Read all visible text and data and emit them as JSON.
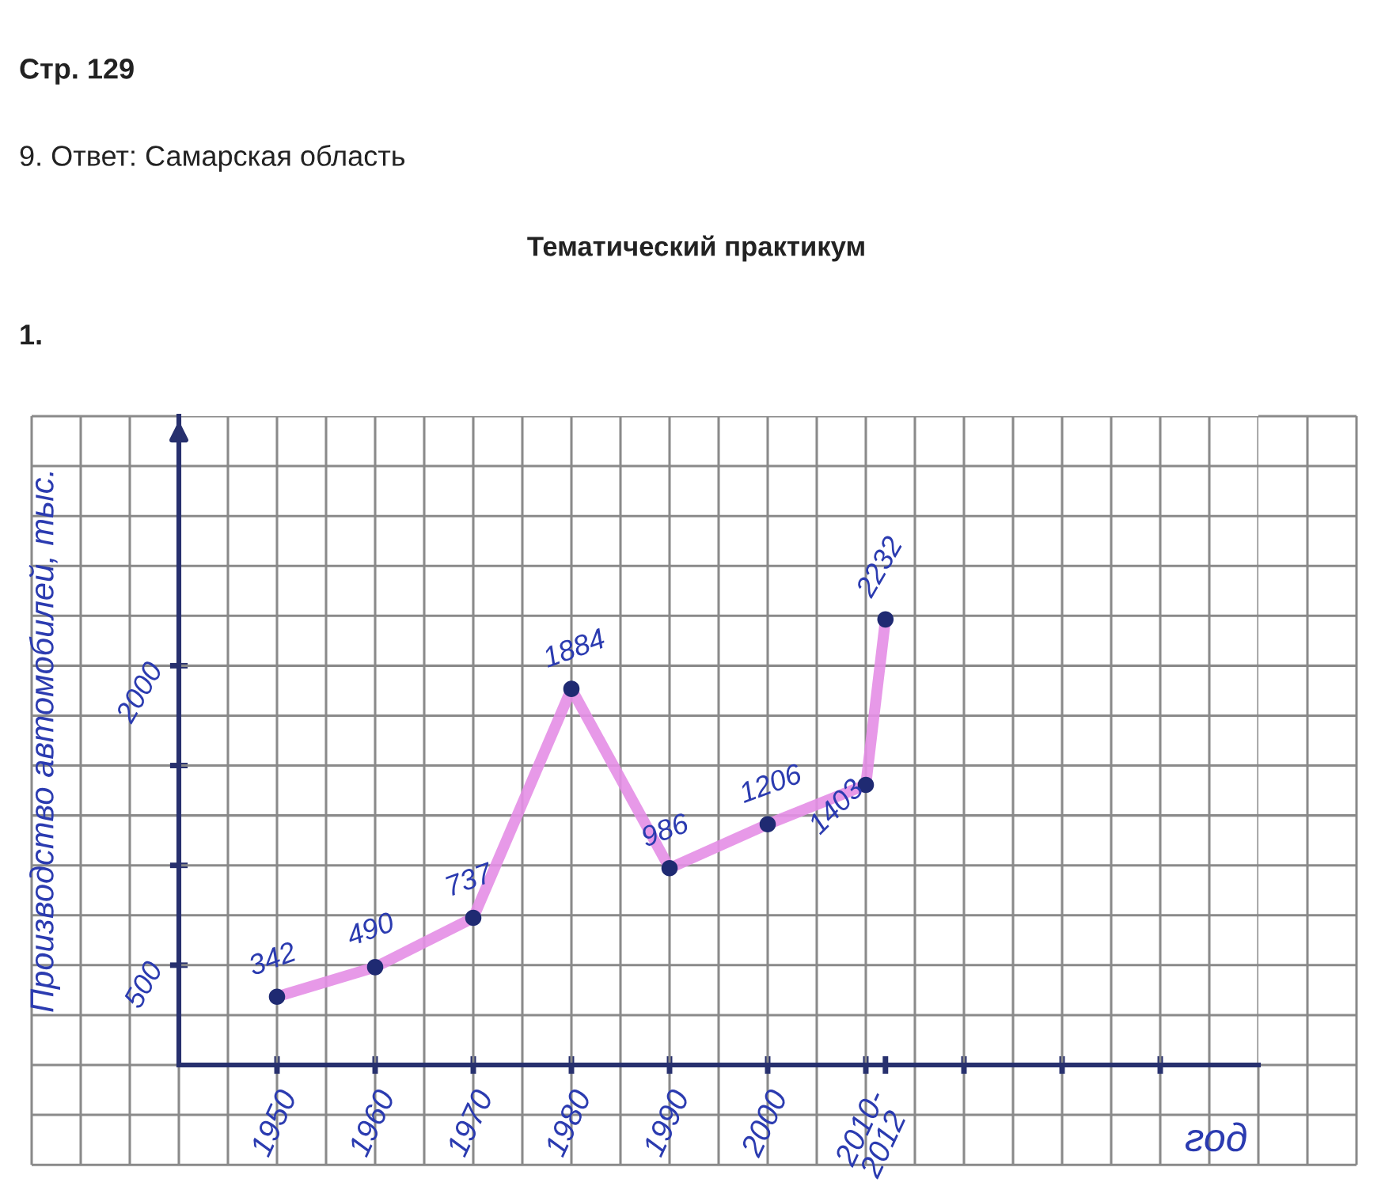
{
  "chart_data": {
    "type": "line",
    "title": "Тематический практикум",
    "xlabel": "год",
    "ylabel": "Производство автомобилей, тыс.",
    "annotations": [
      "Стр. 129",
      "9. Ответ: Самарская область",
      "1."
    ],
    "x": [
      1950,
      1960,
      1970,
      1980,
      1990,
      2000,
      2010,
      2012
    ],
    "series": [
      {
        "color": "#e48ee6",
        "values": [
          342,
          490,
          737,
          1884,
          986,
          1206,
          1403,
          2232
        ]
      },
      {
        "type": "scatter",
        "color": "#1f2a72",
        "marker": "circle",
        "values": [
          342,
          490,
          737,
          1884,
          986,
          1206,
          1403,
          2232
        ],
        "value_labels": [
          "342",
          "490",
          "737",
          "1884",
          "986",
          "1206",
          "1403",
          "2232"
        ]
      }
    ],
    "xlim": [
      1940,
      2050
    ],
    "ylim": [
      0,
      3250
    ],
    "xticks": [
      1950,
      1960,
      1970,
      1980,
      1990,
      2000,
      {
        "value": 2010,
        "label": "2010-2012"
      },
      {
        "value": 2012,
        "label": null
      },
      {
        "value": 2020,
        "label": null
      },
      {
        "value": 2030,
        "label": null
      },
      {
        "value": 2040,
        "label": null
      }
    ],
    "yticks": [
      500,
      {
        "value": 1000,
        "label": null
      },
      {
        "value": 1500,
        "label": null
      },
      2000
    ],
    "grid": true
  }
}
